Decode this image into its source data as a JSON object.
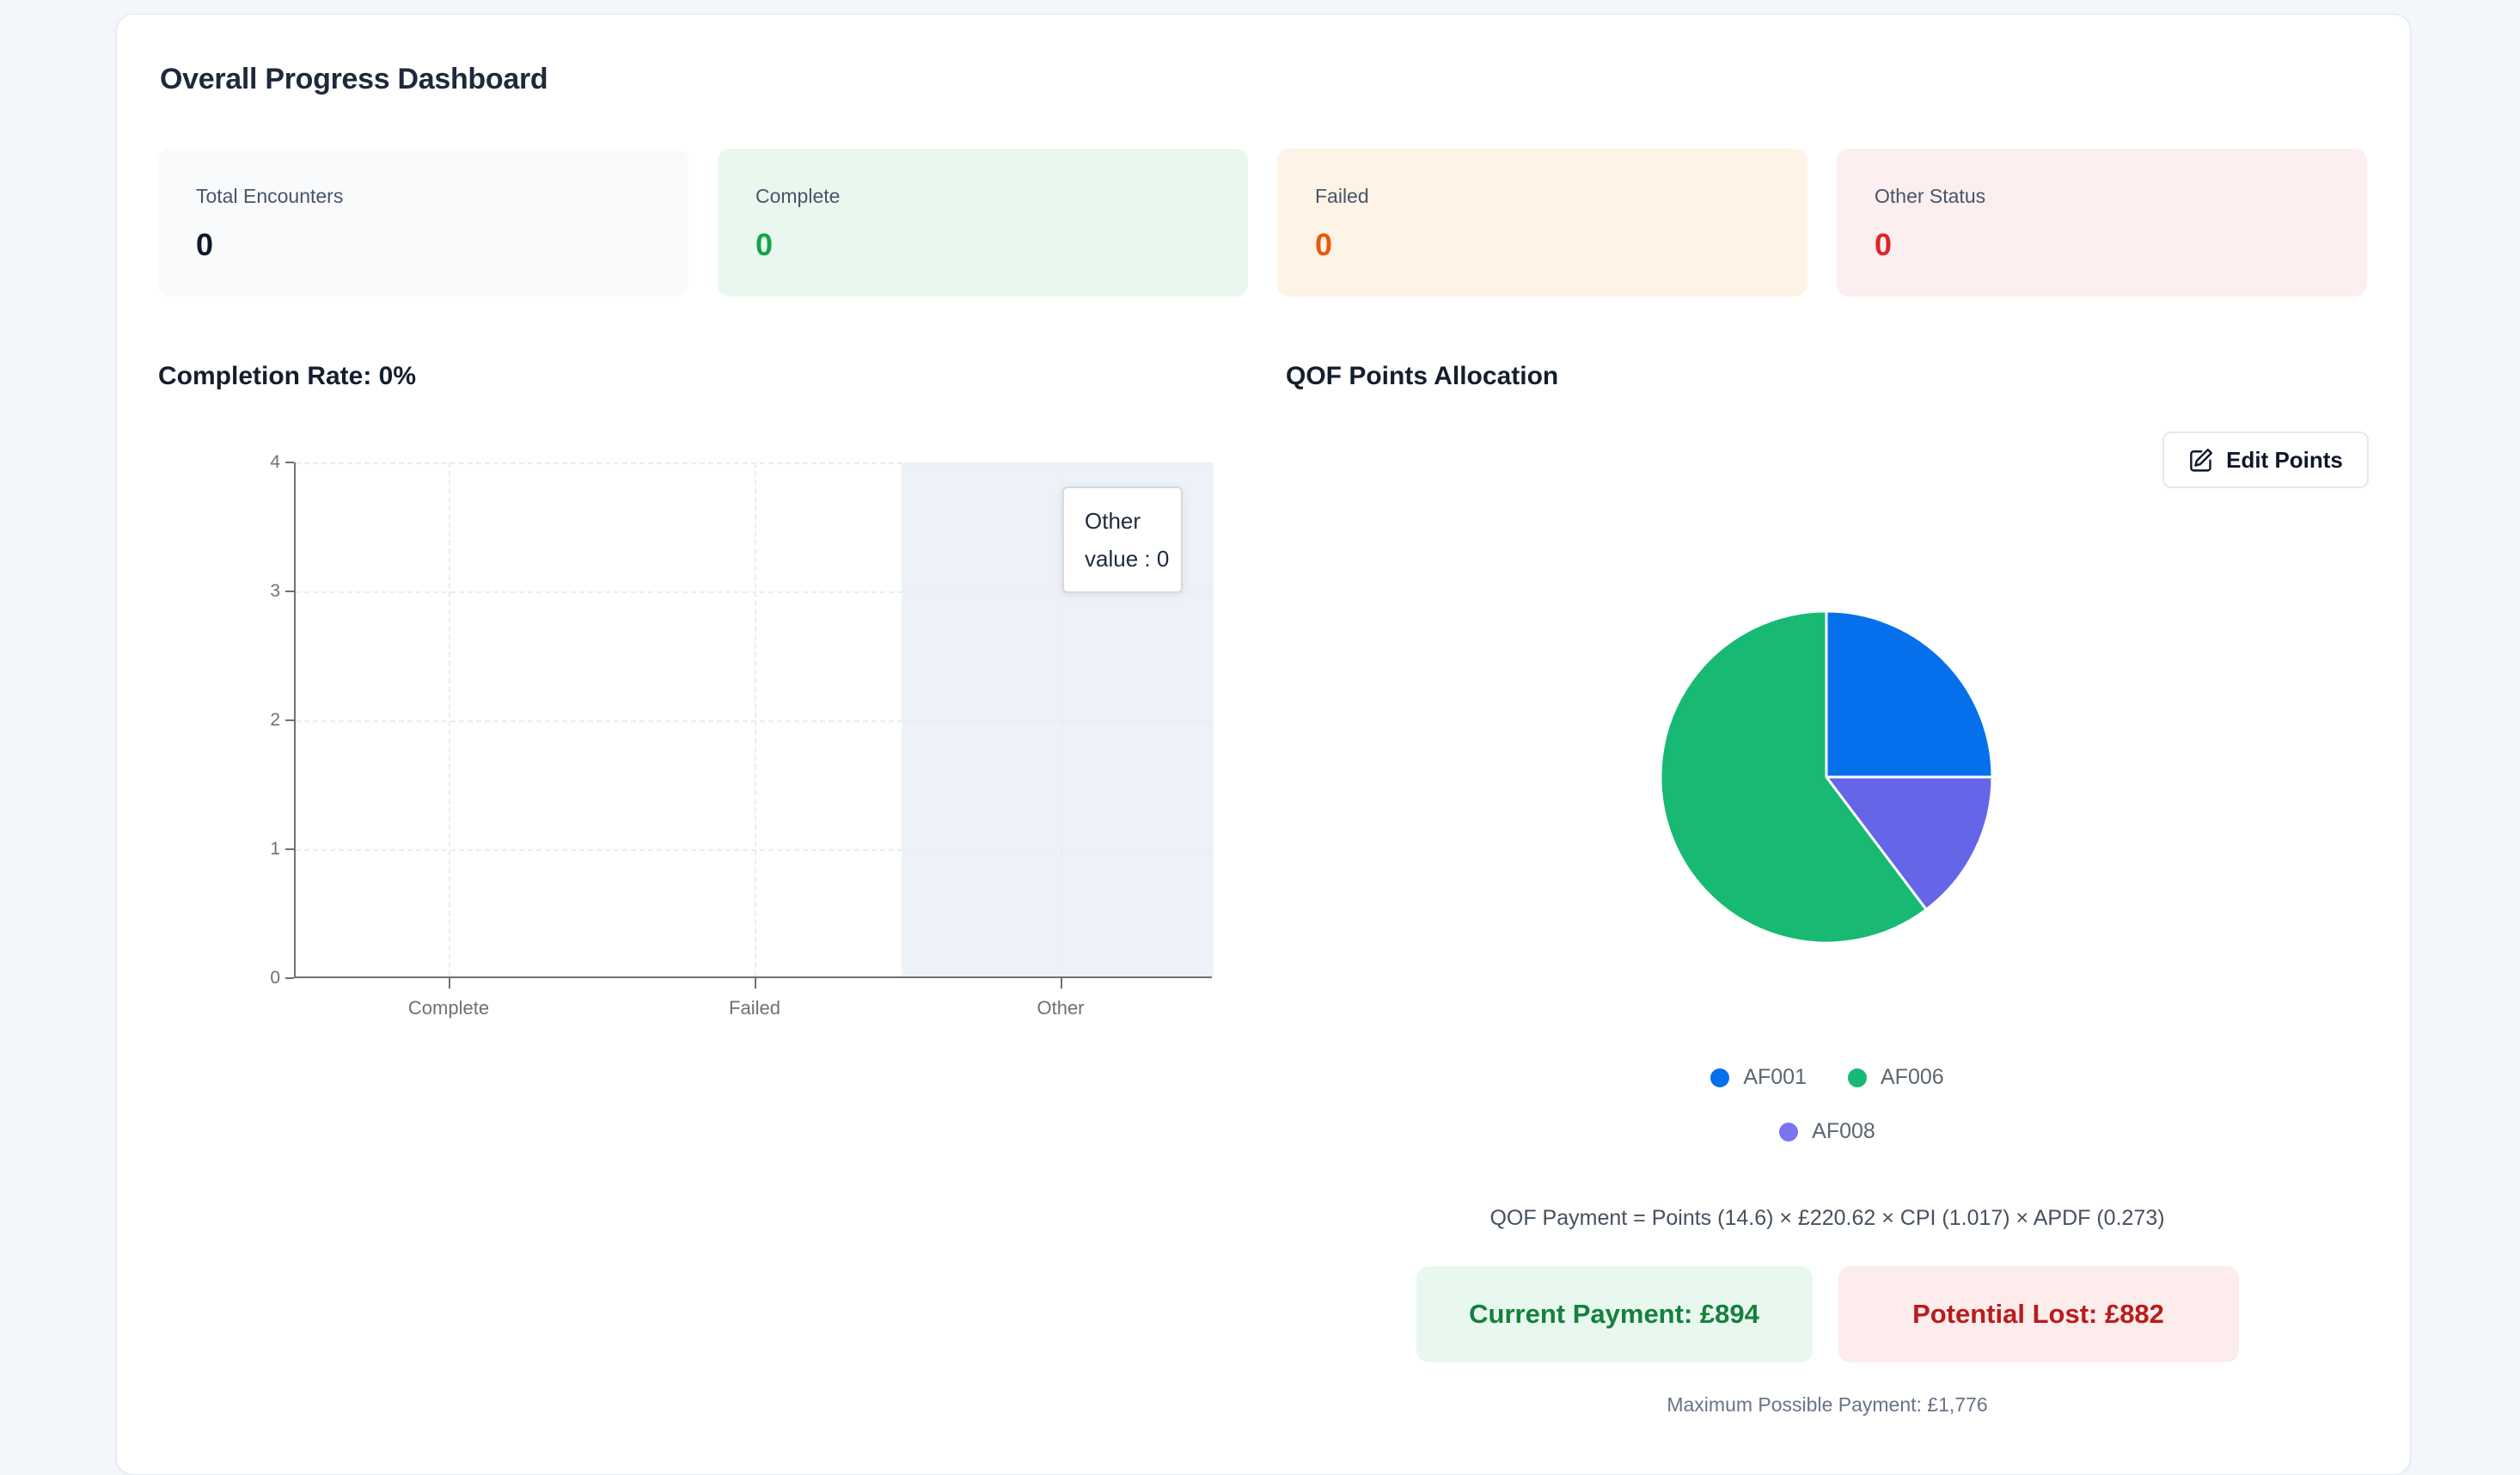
{
  "page": {
    "title": "Overall Progress Dashboard"
  },
  "stats": [
    {
      "label": "Total Encounters",
      "value": "0",
      "bg": "#f8fafc",
      "value_color": "#0f172a"
    },
    {
      "label": "Complete",
      "value": "0",
      "bg": "#e9f8ef",
      "value_color": "#16a34a"
    },
    {
      "label": "Failed",
      "value": "0",
      "bg": "#fdf3e6",
      "value_color": "#ea580c"
    },
    {
      "label": "Other Status",
      "value": "0",
      "bg": "#fdeef0",
      "value_color": "#dc2626"
    }
  ],
  "toolbar": {
    "edit_points_label": "Edit Points"
  },
  "chart_data": [
    {
      "type": "bar",
      "title": "Completion Rate: 0%",
      "categories": [
        "Complete",
        "Failed",
        "Other"
      ],
      "values": [
        0,
        0,
        0
      ],
      "ylim": [
        0,
        4
      ],
      "yticks": [
        0,
        1,
        2,
        3,
        4
      ],
      "grid": "dashed",
      "hover_highlight_category": "Other",
      "tooltip": {
        "title": "Other",
        "value_label": "value : 0"
      },
      "axis_color": "#6E7079",
      "band_color": "#edf1f8"
    },
    {
      "type": "pie",
      "title": "QOF Points Allocation",
      "slices": [
        {
          "name": "AF001",
          "percent": 25.0,
          "start_angle": 0,
          "end_angle": 90,
          "color": "#0670ec"
        },
        {
          "name": "AF008",
          "percent": 14.7,
          "start_angle": 90,
          "end_angle": 143,
          "color": "#6565e7"
        },
        {
          "name": "AF006",
          "percent": 60.3,
          "start_angle": 143,
          "end_angle": 360,
          "color": "#17b973"
        }
      ],
      "legend": [
        {
          "name": "AF001",
          "color": "#0670ec"
        },
        {
          "name": "AF006",
          "color": "#17b973"
        },
        {
          "name": "AF008",
          "color": "#7b74f0"
        }
      ],
      "legend_position": "bottom"
    }
  ],
  "qof_payment": {
    "formula": "QOF Payment = Points (14.6) × £220.62 × CPI (1.017) × APDF (0.273)",
    "current_payment": "Current Payment: £894",
    "current_color": "#15803d",
    "potential_lost": "Potential Lost: £882",
    "lost_color": "#b91c1c",
    "max_payment": "Maximum Possible Payment: £1,776"
  }
}
